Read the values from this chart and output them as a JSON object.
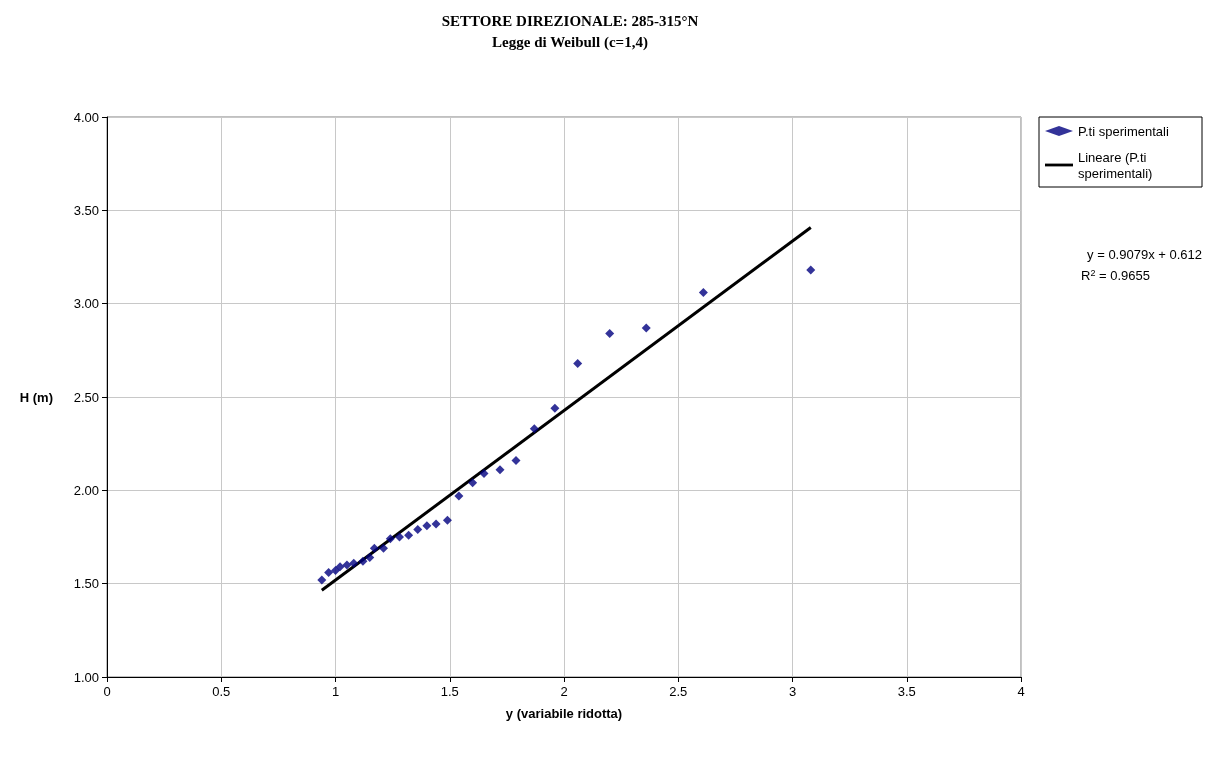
{
  "chart_data": {
    "type": "scatter",
    "title": "SETTORE DIREZIONALE: 285-315°N",
    "subtitle": "Legge di Weibull (c=1,4)",
    "xlabel": "y (variabile ridotta)",
    "ylabel": "H (m)",
    "series": [
      {
        "name": "P.ti sperimentali",
        "marker": "diamond",
        "color": "#000080",
        "x": [
          0.94,
          0.97,
          1.0,
          1.02,
          1.05,
          1.08,
          1.12,
          1.15,
          1.17,
          1.21,
          1.24,
          1.28,
          1.32,
          1.36,
          1.4,
          1.44,
          1.49,
          1.54,
          1.6,
          1.65,
          1.72,
          1.79,
          1.87,
          1.96,
          2.06,
          2.2,
          2.36,
          2.61,
          3.08
        ],
        "values": [
          1.52,
          1.56,
          1.57,
          1.59,
          1.6,
          1.61,
          1.62,
          1.64,
          1.69,
          1.69,
          1.74,
          1.75,
          1.76,
          1.79,
          1.81,
          1.82,
          1.84,
          1.97,
          2.04,
          2.09,
          2.11,
          2.16,
          2.33,
          2.44,
          2.68,
          2.84,
          2.87,
          3.06,
          3.18
        ]
      },
      {
        "name": "Lineare (P.ti sperimentali)",
        "type": "line",
        "marker": "none",
        "color": "#000000",
        "x": [
          0.94,
          3.08
        ],
        "values": [
          1.465,
          3.408
        ]
      }
    ],
    "xlim": [
      0,
      4
    ],
    "xticks": [
      0,
      0.5,
      1,
      1.5,
      2,
      2.5,
      3,
      3.5,
      4
    ],
    "ylim": [
      1,
      4
    ],
    "yticks": [
      {
        "value": 1,
        "label": "1.00"
      },
      {
        "value": 1.5,
        "label": "1.50"
      },
      {
        "value": 2,
        "label": "2.00"
      },
      {
        "value": 2.5,
        "label": "2.50"
      },
      {
        "value": 3,
        "label": "3.00"
      },
      {
        "value": 3.5,
        "label": "3.50"
      },
      {
        "value": 4,
        "label": "4.00"
      }
    ],
    "grid": true,
    "legend": "top right",
    "line_style": "solid",
    "annotations": [
      "y = 0.9079x + 0.612",
      "R$^{2}$ = 0.9655"
    ]
  }
}
